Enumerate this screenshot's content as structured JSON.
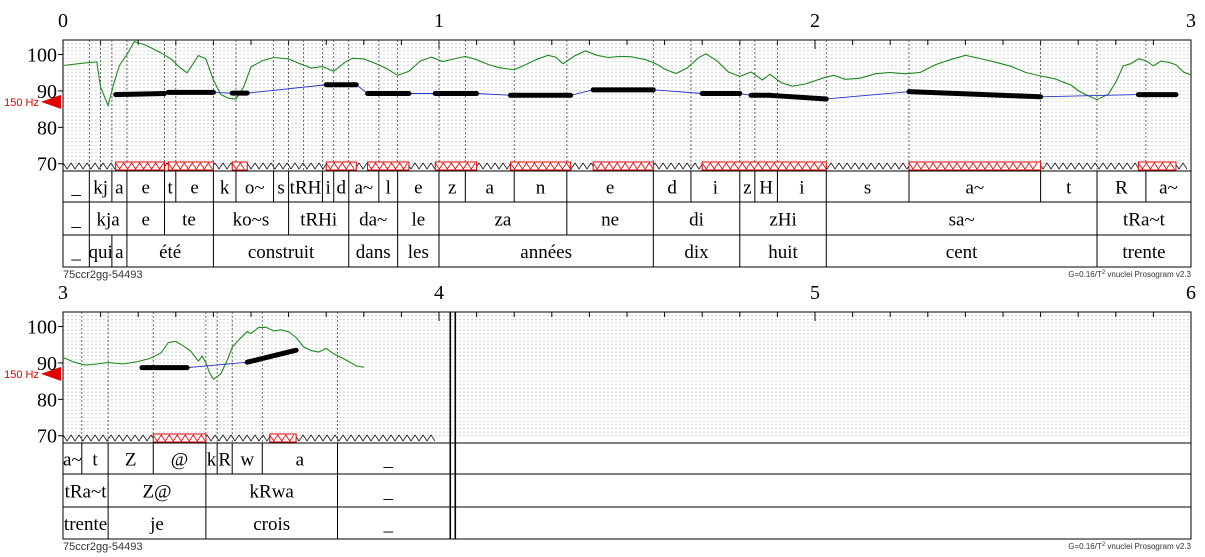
{
  "chart_data": [
    {
      "type": "line",
      "subtype": "prosogram",
      "time_ticks": [
        "0",
        "1",
        "2",
        "3"
      ],
      "time_range": [
        0,
        3
      ],
      "y_ticks": [
        "100",
        "90",
        "80",
        "70"
      ],
      "ylim": [
        68,
        104
      ],
      "reference_label": "150 Hz",
      "reference_value": 87.0,
      "speaker_label": "75ccr2gg-54493",
      "footer_label": "G=0.16/T",
      "footer_sup": "2",
      "footer_rest": " vnuclei Prosogram v2.3",
      "pitch_contour": [
        [
          0.0,
          97.0
        ],
        [
          0.05,
          97.6
        ],
        [
          0.09,
          98.0
        ],
        [
          0.1,
          91
        ],
        [
          0.12,
          86
        ],
        [
          0.135,
          92
        ],
        [
          0.15,
          97
        ],
        [
          0.17,
          100
        ],
        [
          0.19,
          103.6
        ],
        [
          0.22,
          102.6
        ],
        [
          0.26,
          100.5
        ],
        [
          0.29,
          98.6
        ],
        [
          0.31,
          96.5
        ],
        [
          0.33,
          95
        ],
        [
          0.36,
          99.7
        ],
        [
          0.38,
          98.8
        ],
        [
          0.4,
          93
        ],
        [
          0.42,
          89
        ],
        [
          0.44,
          88
        ],
        [
          0.46,
          87.8
        ],
        [
          0.48,
          91
        ],
        [
          0.5,
          96.6
        ],
        [
          0.53,
          98.3
        ],
        [
          0.56,
          99.2
        ],
        [
          0.6,
          98.8
        ],
        [
          0.63,
          97.5
        ],
        [
          0.66,
          96.3
        ],
        [
          0.69,
          96.7
        ],
        [
          0.72,
          95.4
        ],
        [
          0.75,
          97.9
        ],
        [
          0.77,
          99.0
        ],
        [
          0.8,
          98.8
        ],
        [
          0.83,
          97.6
        ],
        [
          0.86,
          96.2
        ],
        [
          0.89,
          94.3
        ],
        [
          0.92,
          95.4
        ],
        [
          0.95,
          98.2
        ],
        [
          0.98,
          99.3
        ],
        [
          1.01,
          98.1
        ],
        [
          1.04,
          98.8
        ],
        [
          1.07,
          99.5
        ],
        [
          1.1,
          98.6
        ],
        [
          1.13,
          97.3
        ],
        [
          1.16,
          96.4
        ],
        [
          1.2,
          95.8
        ],
        [
          1.23,
          97.2
        ],
        [
          1.26,
          98.7
        ],
        [
          1.29,
          99.8
        ],
        [
          1.31,
          99.3
        ],
        [
          1.33,
          97.5
        ],
        [
          1.36,
          99.6
        ],
        [
          1.39,
          101.0
        ],
        [
          1.42,
          99.8
        ],
        [
          1.45,
          99.2
        ],
        [
          1.48,
          99.5
        ],
        [
          1.51,
          99.4
        ],
        [
          1.55,
          98.6
        ],
        [
          1.58,
          97.3
        ],
        [
          1.6,
          96.0
        ],
        [
          1.63,
          94.8
        ],
        [
          1.66,
          96.3
        ],
        [
          1.69,
          99.1
        ],
        [
          1.71,
          100.2
        ],
        [
          1.74,
          98.2
        ],
        [
          1.77,
          95.2
        ],
        [
          1.8,
          94.0
        ],
        [
          1.83,
          95.2
        ],
        [
          1.86,
          93.0
        ],
        [
          1.88,
          94.6
        ],
        [
          1.91,
          92.3
        ],
        [
          1.94,
          91.3
        ],
        [
          1.97,
          91.8
        ],
        [
          2.0,
          92.8
        ],
        [
          2.02,
          93.5
        ],
        [
          2.05,
          94.3
        ],
        [
          2.08,
          93.2
        ],
        [
          2.12,
          93.5
        ],
        [
          2.16,
          94.7
        ],
        [
          2.2,
          95.1
        ],
        [
          2.24,
          94.7
        ],
        [
          2.28,
          95.1
        ],
        [
          2.32,
          97.2
        ],
        [
          2.36,
          98.6
        ],
        [
          2.4,
          99.8
        ],
        [
          2.44,
          98.9
        ],
        [
          2.48,
          97.9
        ],
        [
          2.52,
          96.8
        ],
        [
          2.56,
          95.1
        ],
        [
          2.6,
          94.1
        ],
        [
          2.64,
          93.3
        ],
        [
          2.66,
          92.4
        ],
        [
          2.68,
          91.7
        ],
        [
          2.7,
          90.1
        ],
        [
          2.72,
          89.0
        ],
        [
          2.75,
          87.6
        ],
        [
          2.78,
          89.1
        ],
        [
          2.8,
          92.4
        ],
        [
          2.82,
          96.9
        ],
        [
          2.84,
          97.5
        ],
        [
          2.86,
          98.8
        ],
        [
          2.88,
          98.3
        ],
        [
          2.9,
          96.9
        ],
        [
          2.92,
          98.2
        ],
        [
          2.94,
          97.9
        ],
        [
          2.96,
          97.2
        ],
        [
          2.98,
          95.2
        ],
        [
          3.0,
          94.4
        ]
      ],
      "stylized_tones": [
        [
          0.14,
          0.27,
          89.0,
          89.3
        ],
        [
          0.28,
          0.4,
          89.6,
          89.6
        ],
        [
          0.45,
          0.49,
          89.4,
          89.4
        ],
        [
          0.7,
          0.78,
          91.7,
          91.7
        ],
        [
          0.81,
          0.92,
          89.3,
          89.3
        ],
        [
          0.99,
          1.1,
          89.3,
          89.3
        ],
        [
          1.19,
          1.35,
          88.8,
          88.8
        ],
        [
          1.41,
          1.57,
          90.3,
          90.3
        ],
        [
          1.7,
          1.8,
          89.3,
          89.3
        ],
        [
          1.83,
          1.88,
          88.8,
          88.8
        ],
        [
          1.88,
          2.03,
          88.8,
          87.8
        ],
        [
          2.25,
          2.6,
          89.8,
          88.4
        ],
        [
          2.86,
          2.96,
          89.0,
          89.0
        ]
      ],
      "phones": [
        [
          "_",
          0.0,
          0.07
        ],
        [
          "kj",
          0.07,
          0.13
        ],
        [
          "a",
          0.13,
          0.17
        ],
        [
          "e",
          0.17,
          0.27
        ],
        [
          "t",
          0.27,
          0.3
        ],
        [
          "e",
          0.3,
          0.4
        ],
        [
          "k",
          0.4,
          0.46
        ],
        [
          "o~",
          0.46,
          0.56
        ],
        [
          "s",
          0.56,
          0.6
        ],
        [
          "tRH",
          0.6,
          0.69
        ],
        [
          "i",
          0.69,
          0.72
        ],
        [
          "d",
          0.72,
          0.76
        ],
        [
          "a~",
          0.76,
          0.84
        ],
        [
          "l",
          0.84,
          0.89
        ],
        [
          "e",
          0.89,
          1.0
        ],
        [
          "z",
          1.0,
          1.07
        ],
        [
          "a",
          1.07,
          1.2
        ],
        [
          "n",
          1.2,
          1.34
        ],
        [
          "e",
          1.34,
          1.57
        ],
        [
          "d",
          1.57,
          1.67
        ],
        [
          "i",
          1.67,
          1.8
        ],
        [
          "z",
          1.8,
          1.84
        ],
        [
          "H",
          1.84,
          1.9
        ],
        [
          "i",
          1.9,
          2.03
        ],
        [
          "s",
          2.03,
          2.25
        ],
        [
          "a~",
          2.25,
          2.6
        ],
        [
          "t",
          2.6,
          2.75
        ],
        [
          "R",
          2.75,
          2.88
        ],
        [
          "a~",
          2.88,
          3.0
        ]
      ],
      "syllables": [
        [
          "_",
          0.0,
          0.07
        ],
        [
          "kja",
          0.07,
          0.17
        ],
        [
          "e",
          0.17,
          0.27
        ],
        [
          "te",
          0.27,
          0.4
        ],
        [
          "ko~s",
          0.4,
          0.6
        ],
        [
          "tRHi",
          0.6,
          0.76
        ],
        [
          "da~",
          0.76,
          0.89
        ],
        [
          "le",
          0.89,
          1.0
        ],
        [
          "za",
          1.0,
          1.34
        ],
        [
          "ne",
          1.34,
          1.57
        ],
        [
          "di",
          1.57,
          1.8
        ],
        [
          "zHi",
          1.8,
          2.03
        ],
        [
          "sa~",
          2.03,
          2.75
        ],
        [
          "tRa~t",
          2.75,
          3.0
        ]
      ],
      "words": [
        [
          "_",
          0.0,
          0.07
        ],
        [
          "qui",
          0.07,
          0.13
        ],
        [
          "a",
          0.13,
          0.17
        ],
        [
          "été",
          0.17,
          0.4
        ],
        [
          "construit",
          0.4,
          0.76
        ],
        [
          "dans",
          0.76,
          0.89
        ],
        [
          "les",
          0.89,
          1.0
        ],
        [
          "années",
          1.0,
          1.57
        ],
        [
          "dix",
          1.57,
          1.8
        ],
        [
          "huit",
          1.8,
          2.03
        ],
        [
          "cent",
          2.03,
          2.75
        ],
        [
          "trente",
          2.75,
          3.0
        ]
      ],
      "nuclei": [
        [
          0.14,
          0.27
        ],
        [
          0.28,
          0.4
        ],
        [
          0.45,
          0.49
        ],
        [
          0.7,
          0.78
        ],
        [
          0.81,
          0.92
        ],
        [
          0.99,
          1.1
        ],
        [
          1.19,
          1.35
        ],
        [
          1.41,
          1.57
        ],
        [
          1.7,
          2.03
        ],
        [
          2.25,
          2.6
        ],
        [
          2.86,
          2.96
        ]
      ],
      "boundaries": [
        0.07,
        0.1,
        0.13,
        0.17,
        0.27,
        0.3,
        0.4,
        0.46,
        0.56,
        0.6,
        0.64,
        0.69,
        0.72,
        0.76,
        0.84,
        0.89,
        1.0,
        1.07,
        1.2,
        1.34,
        1.57,
        1.67,
        1.8,
        1.84,
        1.9,
        2.03,
        2.25,
        2.6,
        2.75,
        2.88
      ]
    },
    {
      "type": "line",
      "subtype": "prosogram",
      "time_ticks": [
        "3",
        "4",
        "5",
        "6"
      ],
      "time_range": [
        3,
        6
      ],
      "y_ticks": [
        "100",
        "90",
        "80",
        "70"
      ],
      "ylim": [
        68,
        104
      ],
      "reference_label": "150 Hz",
      "reference_value": 87.0,
      "speaker_label": "75ccr2gg-54493",
      "footer_label": "G=0.16/T",
      "footer_sup": "2",
      "footer_rest": " vnuclei Prosogram v2.3",
      "pitch_contour": [
        [
          3.0,
          91.5
        ],
        [
          3.03,
          90.2
        ],
        [
          3.06,
          89.4
        ],
        [
          3.09,
          89.7
        ],
        [
          3.12,
          90.1
        ],
        [
          3.16,
          89.7
        ],
        [
          3.2,
          90.4
        ],
        [
          3.23,
          91.2
        ],
        [
          3.26,
          92.7
        ],
        [
          3.28,
          95.6
        ],
        [
          3.3,
          95.9
        ],
        [
          3.32,
          94.7
        ],
        [
          3.34,
          93.2
        ],
        [
          3.36,
          90.5
        ],
        [
          3.37,
          91.9
        ],
        [
          3.38,
          90.0
        ],
        [
          3.39,
          87.3
        ],
        [
          3.4,
          85.5
        ],
        [
          3.42,
          87.0
        ],
        [
          3.44,
          91.5
        ],
        [
          3.45,
          94.3
        ],
        [
          3.47,
          96.6
        ],
        [
          3.49,
          98.6
        ],
        [
          3.5,
          98.1
        ],
        [
          3.52,
          99.7
        ],
        [
          3.54,
          99.8
        ],
        [
          3.56,
          98.8
        ],
        [
          3.58,
          99.1
        ],
        [
          3.6,
          98.6
        ],
        [
          3.62,
          97.0
        ],
        [
          3.64,
          94.4
        ],
        [
          3.66,
          93.4
        ],
        [
          3.68,
          93.0
        ],
        [
          3.7,
          94.0
        ],
        [
          3.72,
          92.5
        ],
        [
          3.74,
          91.5
        ],
        [
          3.76,
          90.4
        ],
        [
          3.78,
          89.2
        ],
        [
          3.8,
          88.8
        ]
      ],
      "stylized_tones": [
        [
          3.21,
          3.33,
          88.7,
          88.7
        ],
        [
          3.49,
          3.62,
          90.2,
          93.5
        ]
      ],
      "phones": [
        [
          "a~",
          3.0,
          3.05
        ],
        [
          "t",
          3.05,
          3.12
        ],
        [
          "Z",
          3.12,
          3.24
        ],
        [
          "@",
          3.24,
          3.38
        ],
        [
          "k",
          3.38,
          3.41
        ],
        [
          "R",
          3.41,
          3.45
        ],
        [
          "w",
          3.45,
          3.53
        ],
        [
          "a",
          3.53,
          3.73
        ],
        [
          "_",
          3.73,
          4.0
        ]
      ],
      "syllables": [
        [
          "tRa~t",
          3.0,
          3.12
        ],
        [
          "Z@",
          3.12,
          3.38
        ],
        [
          "kRwa",
          3.38,
          3.73
        ],
        [
          "_",
          3.73,
          4.0
        ]
      ],
      "words": [
        [
          "trente",
          3.0,
          3.12
        ],
        [
          "je",
          3.12,
          3.38
        ],
        [
          "crois",
          3.38,
          3.73
        ],
        [
          "_",
          3.73,
          4.0
        ]
      ],
      "nuclei": [
        [
          3.24,
          3.38
        ],
        [
          3.55,
          3.62
        ]
      ],
      "boundaries": [
        3.05,
        3.12,
        3.24,
        3.38,
        3.41,
        3.45,
        3.53,
        3.73
      ],
      "end_marker": 4.03
    }
  ]
}
